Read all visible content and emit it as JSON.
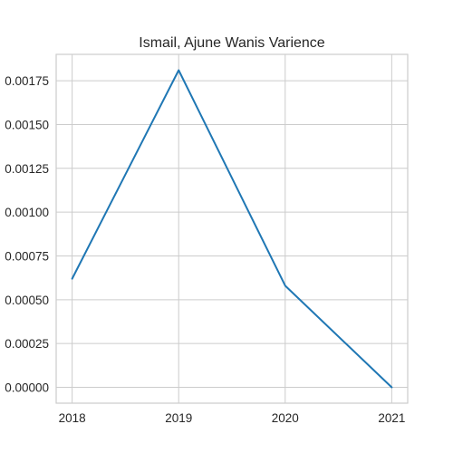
{
  "chart_data": {
    "type": "line",
    "title": "Ismail, Ajune Wanis Varience",
    "xlabel": "",
    "ylabel": "",
    "x": [
      2018,
      2019,
      2020,
      2021
    ],
    "x_tick_labels": [
      "2018",
      "2019",
      "2020",
      "2021"
    ],
    "y_ticks": [
      0,
      0.00025,
      0.0005,
      0.00075,
      0.001,
      0.00125,
      0.0015,
      0.00175
    ],
    "y_tick_labels": [
      "0.00000",
      "0.00025",
      "0.00050",
      "0.00075",
      "0.00100",
      "0.00125",
      "0.00150",
      "0.00175"
    ],
    "series": [
      {
        "values": [
          0.00062,
          0.00181,
          0.00058,
          0.0
        ],
        "color": "#1f77b4"
      }
    ],
    "xlim": [
      2017.85,
      2021.15
    ],
    "ylim": [
      -9.05e-05,
      0.0019005
    ],
    "grid": true,
    "legend": "none"
  }
}
